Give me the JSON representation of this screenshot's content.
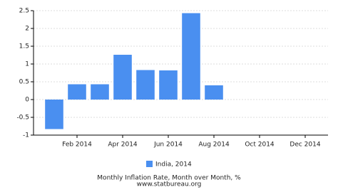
{
  "chart_data": {
    "type": "bar",
    "title": "Monthly Inflation Rate, Month over Month, %",
    "source": "www.statbureau.org",
    "categories": [
      null,
      "Feb 2014",
      null,
      "Apr 2014",
      null,
      "Jun 2014",
      null,
      "Aug 2014",
      null,
      "Oct 2014",
      null,
      "Dec 2014"
    ],
    "series": [
      {
        "name": "India, 2014",
        "color": "#4a8ff0",
        "values": [
          -0.83,
          0.43,
          0.43,
          1.26,
          0.83,
          0.82,
          2.43,
          0.4,
          null,
          null,
          null,
          null
        ]
      }
    ],
    "ylim": [
      -1,
      2.5
    ],
    "yticks": [
      -1,
      -0.5,
      0,
      0.5,
      1,
      1.5,
      2,
      2.5
    ],
    "grid": true
  }
}
